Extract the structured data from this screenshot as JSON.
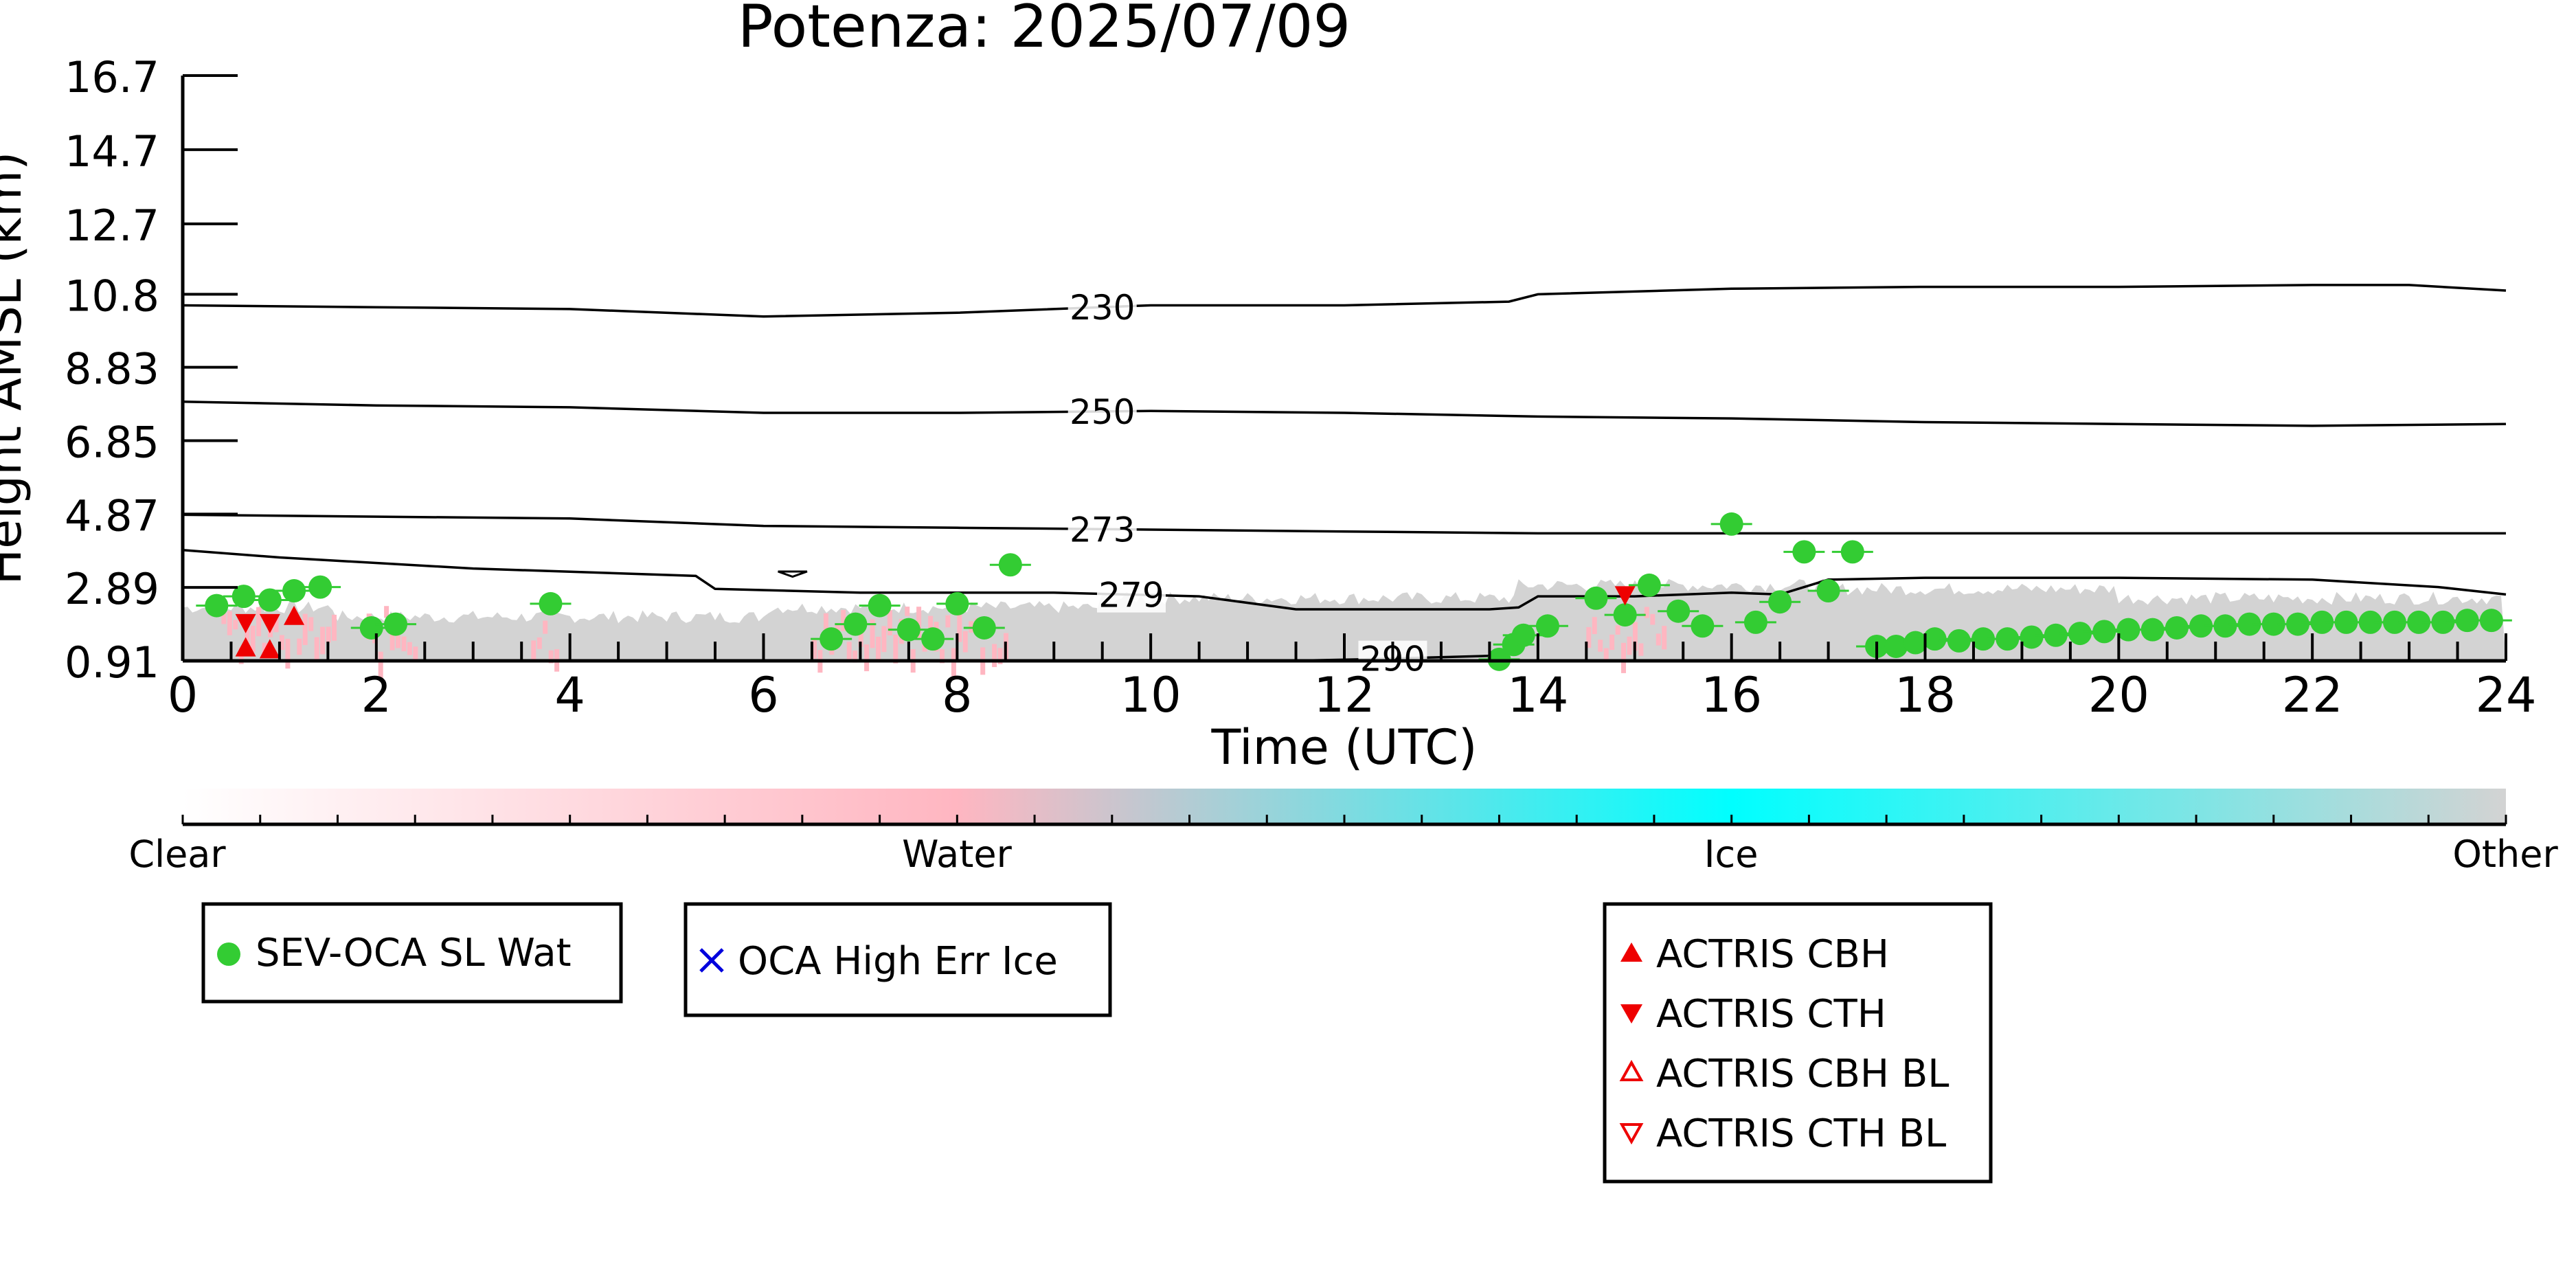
{
  "chart_data": {
    "type": "scatter",
    "title": "Potenza: 2025/07/09",
    "xlabel": "Time (UTC)",
    "ylabel": "Height AMSL (km)",
    "xlim": [
      0,
      24
    ],
    "ylim": [
      0.91,
      16.7
    ],
    "x_ticks": [
      "0",
      "2",
      "4",
      "6",
      "8",
      "10",
      "12",
      "14",
      "16",
      "18",
      "20",
      "22",
      "24"
    ],
    "y_ticks": [
      "16.7",
      "14.7",
      "12.7",
      "10.8",
      "8.83",
      "6.85",
      "4.87",
      "2.89",
      "0.91"
    ],
    "colorbar": {
      "labels": [
        "Clear",
        "Water",
        "Ice",
        "Other"
      ],
      "colors": [
        "#ffffff",
        "#ffb6c1",
        "#00ffff",
        "#d3d3d3"
      ]
    },
    "contours": [
      {
        "label": "230",
        "x": [
          0,
          2,
          4,
          6,
          8,
          10,
          12,
          13.7,
          14,
          16,
          18,
          20,
          22,
          23,
          24
        ],
        "y": [
          10.5,
          10.45,
          10.4,
          10.2,
          10.3,
          10.5,
          10.5,
          10.6,
          10.8,
          10.95,
          11,
          11,
          11.05,
          11.05,
          10.9
        ]
      },
      {
        "label": "250",
        "x": [
          0,
          2,
          4,
          6,
          8,
          10,
          12,
          14,
          16,
          18,
          20,
          22,
          24
        ],
        "y": [
          7.9,
          7.8,
          7.75,
          7.6,
          7.6,
          7.65,
          7.6,
          7.5,
          7.45,
          7.35,
          7.3,
          7.25,
          7.3
        ]
      },
      {
        "label": "273",
        "x": [
          0,
          2,
          4,
          6,
          8,
          10,
          12,
          14,
          16,
          18,
          20,
          22,
          24
        ],
        "y": [
          4.85,
          4.8,
          4.75,
          4.55,
          4.5,
          4.45,
          4.4,
          4.35,
          4.35,
          4.35,
          4.35,
          4.35,
          4.35
        ]
      },
      {
        "label": "279",
        "x": [
          0,
          1,
          3,
          5.3,
          5.5,
          7,
          9,
          10.5,
          11.5,
          12.5,
          13.5,
          13.8,
          14,
          15,
          16,
          16.5,
          17,
          18,
          20,
          22,
          23.3,
          24
        ],
        "y": [
          3.9,
          3.7,
          3.4,
          3.2,
          2.85,
          2.75,
          2.75,
          2.65,
          2.3,
          2.3,
          2.3,
          2.35,
          2.65,
          2.65,
          2.75,
          2.7,
          3.1,
          3.15,
          3.15,
          3.1,
          2.9,
          2.7
        ]
      },
      {
        "label": "290",
        "x": [
          11.4,
          12.2,
          13.6
        ],
        "y": [
          0.91,
          0.95,
          1.05
        ]
      }
    ],
    "series": [
      {
        "name": "SEV-OCA SL Wat",
        "color": "#33cc33",
        "marker": "circle",
        "x": [
          0.35,
          0.63,
          0.9,
          1.15,
          1.42,
          1.95,
          2.2,
          3.8,
          6.7,
          6.95,
          7.2,
          7.5,
          7.75,
          8.0,
          8.28,
          8.55,
          13.6,
          13.75,
          13.85,
          14.1,
          14.6,
          14.9,
          15.15,
          15.45,
          15.7,
          16.0,
          16.25,
          16.5,
          16.75,
          17.0,
          17.25,
          17.5,
          17.7,
          17.9,
          18.1,
          18.35,
          18.6,
          18.85,
          19.1,
          19.35,
          19.6,
          19.85,
          20.1,
          20.35,
          20.6,
          20.85,
          21.1,
          21.35,
          21.6,
          21.85,
          22.1,
          22.35,
          22.6,
          22.85,
          23.1,
          23.35,
          23.6,
          23.85
        ],
        "y": [
          2.4,
          2.65,
          2.55,
          2.8,
          2.9,
          1.8,
          1.9,
          2.45,
          1.5,
          1.9,
          2.4,
          1.75,
          1.5,
          2.45,
          1.8,
          3.5,
          0.95,
          1.35,
          1.6,
          1.85,
          2.6,
          2.15,
          2.95,
          2.25,
          1.85,
          4.6,
          1.95,
          2.5,
          3.85,
          2.8,
          3.85,
          1.3,
          1.3,
          1.4,
          1.5,
          1.45,
          1.5,
          1.5,
          1.55,
          1.6,
          1.65,
          1.7,
          1.75,
          1.75,
          1.8,
          1.85,
          1.85,
          1.9,
          1.9,
          1.9,
          1.95,
          1.95,
          1.95,
          1.95,
          1.95,
          1.95,
          2.0,
          2.0
        ]
      },
      {
        "name": "OCA High Err Ice",
        "color": "#0000dd",
        "marker": "x",
        "x": [],
        "y": []
      },
      {
        "name": "ACTRIS CBH",
        "color": "#ee0000",
        "marker": "triangle-up",
        "x": [
          0.65,
          0.9,
          1.15
        ],
        "y": [
          1.25,
          1.2,
          2.1
        ]
      },
      {
        "name": "ACTRIS CTH",
        "color": "#ee0000",
        "marker": "triangle-down",
        "x": [
          0.65,
          0.9,
          14.9
        ],
        "y": [
          1.95,
          1.95,
          2.7
        ]
      },
      {
        "name": "ACTRIS CBH BL",
        "color": "#ee0000",
        "marker": "triangle-up-open",
        "x": [],
        "y": []
      },
      {
        "name": "ACTRIS CTH BL",
        "color": "#ee0000",
        "marker": "triangle-down-open",
        "x": [],
        "y": []
      }
    ]
  }
}
